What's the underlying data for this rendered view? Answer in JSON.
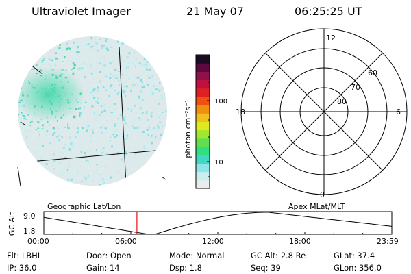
{
  "header": {
    "instrument": "Ultraviolet Imager",
    "date": "21 May 07",
    "time": "06:25:25 UT"
  },
  "colorbar": {
    "unit_label": "photon cm⁻²s⁻¹",
    "ticks": [
      "100",
      "10"
    ],
    "colors": [
      "#e8ecec",
      "#c8eeee",
      "#8ee4e8",
      "#40d8c0",
      "#30e080",
      "#60e050",
      "#a0e830",
      "#e0e820",
      "#f0c020",
      "#f09010",
      "#f05010",
      "#e02020",
      "#c01040",
      "#90104a",
      "#5a0a40",
      "#1a0a22"
    ]
  },
  "polar_grid": {
    "mlt_labels": {
      "top": "12",
      "left": "18",
      "right": "6",
      "bottom": "0"
    },
    "lat_labels": [
      "60",
      "70",
      "80"
    ]
  },
  "altitude_plot": {
    "y_axis_label": "GC Alt",
    "y_ticks": [
      "9.0",
      "1.8"
    ],
    "left_caption": "Geographic Lat/Lon",
    "right_caption": "Apex MLat/MLT",
    "x_ticks": [
      "00:00",
      "06:00",
      "12:00",
      "18:00",
      "23:59"
    ],
    "current_time_hours": 6.42
  },
  "info": {
    "filter": "Flt: LBHL",
    "ip": "IP: 36.0",
    "door": "Door: Open",
    "gain": "Gain: 14",
    "mode": "Mode: Normal",
    "dsp": "Dsp:    1.8",
    "gc_alt": "GC Alt: 2.8 Re",
    "seq": "Seq: 39",
    "glat": "GLat:  37.4",
    "glon": "GLon: 356.0"
  }
}
